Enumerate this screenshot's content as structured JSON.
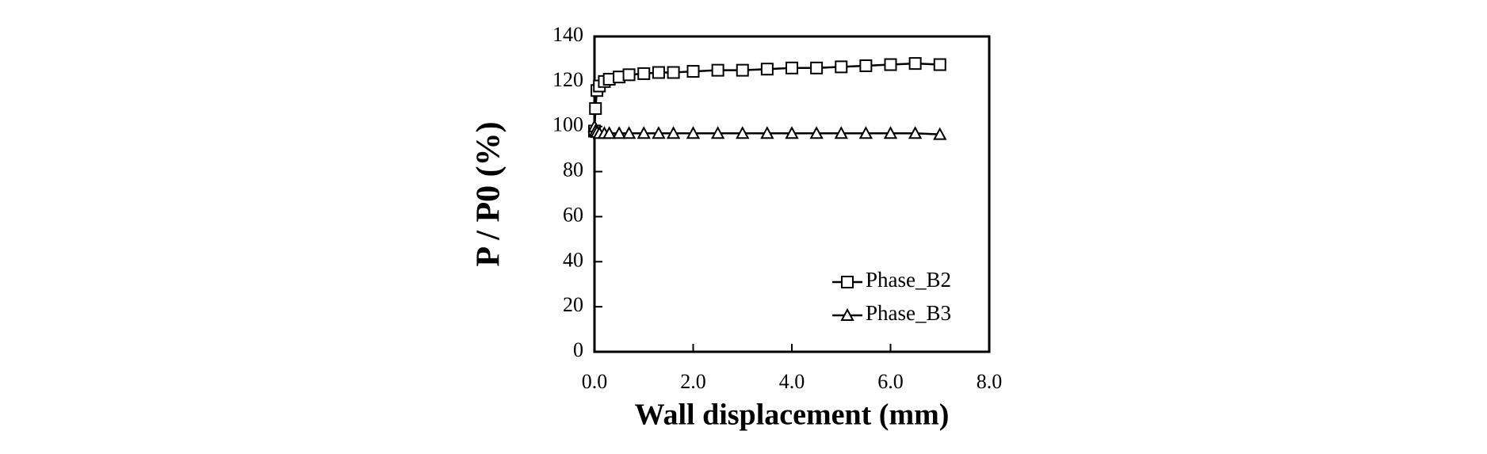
{
  "chart_data": {
    "type": "line",
    "xlabel": "Wall displacement (mm)",
    "ylabel": "P / P0 (%)",
    "x": [
      0,
      0.02,
      0.05,
      0.1,
      0.2,
      0.3,
      0.5,
      0.7,
      1.0,
      1.3,
      1.6,
      2.0,
      2.5,
      3.0,
      3.5,
      4.0,
      4.5,
      5.0,
      5.5,
      6.0,
      6.5,
      7.0
    ],
    "series": [
      {
        "name": "Phase_B2",
        "color": "#000000",
        "marker": "square",
        "values": [
          98,
          108,
          116,
          118,
          120,
          121,
          122,
          123,
          123.5,
          124,
          124,
          124.5,
          125,
          125,
          125.5,
          126,
          126,
          126.5,
          127,
          127.5,
          128,
          127.5
        ]
      },
      {
        "name": "Phase_B3",
        "color": "#000000",
        "marker": "triangle",
        "values": [
          100,
          98,
          97.5,
          97,
          97,
          97,
          97,
          97,
          97,
          97,
          97,
          97,
          97,
          97,
          97,
          97,
          97,
          97,
          97,
          97,
          97,
          96.5
        ]
      }
    ],
    "xlim": [
      0,
      8
    ],
    "xticks": [
      {
        "value": 0,
        "label": "0.0"
      },
      {
        "value": 2,
        "label": "2.0"
      },
      {
        "value": 4,
        "label": "4.0"
      },
      {
        "value": 6,
        "label": "6.0"
      },
      {
        "value": 8,
        "label": "8.0"
      }
    ],
    "ylim": [
      0,
      140
    ],
    "yticks": [
      0,
      20,
      40,
      60,
      80,
      100,
      120,
      140
    ],
    "grid": false,
    "legend": "lower right"
  }
}
